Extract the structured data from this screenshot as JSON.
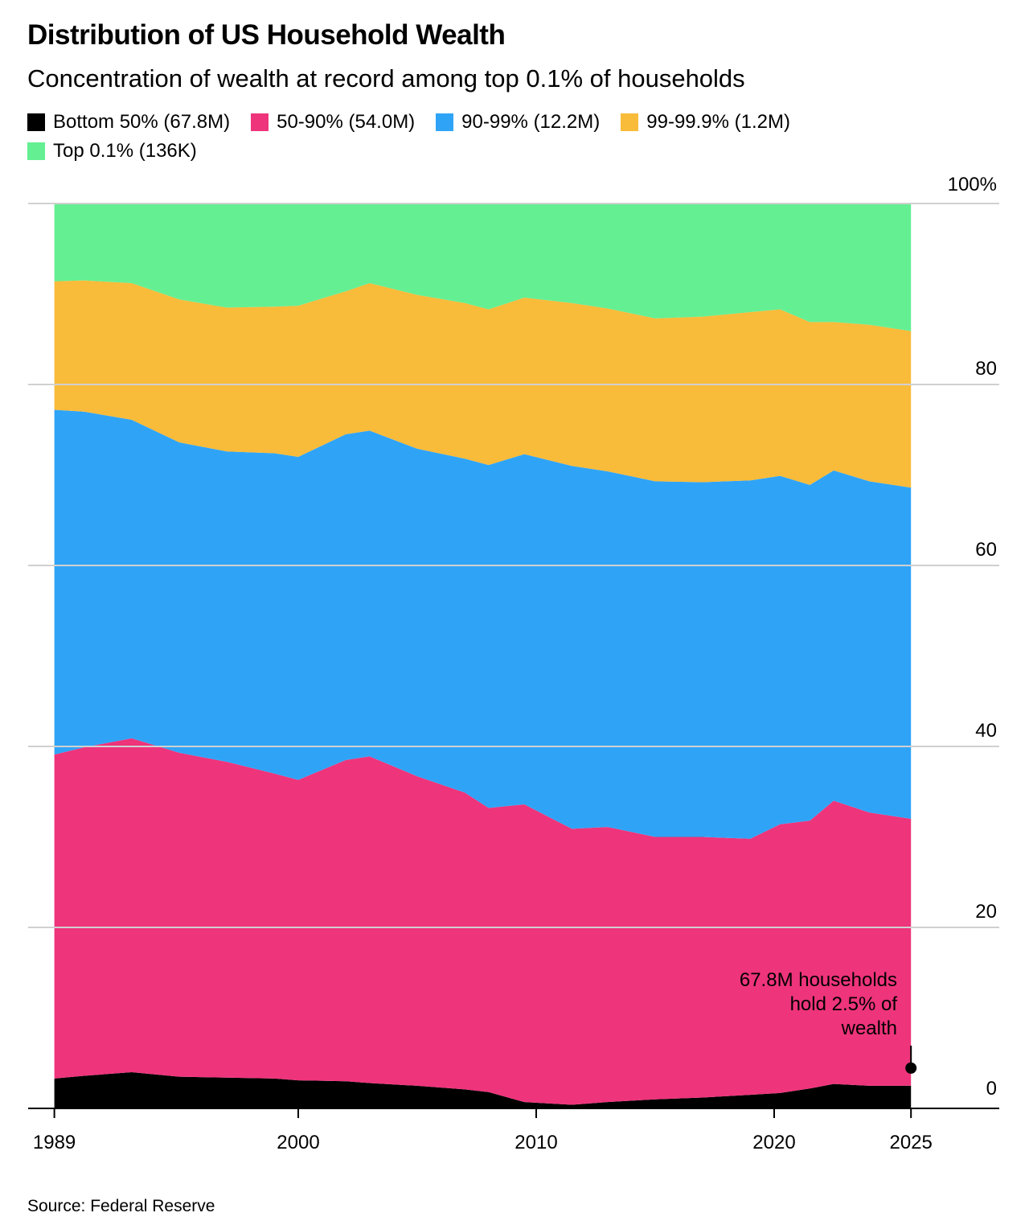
{
  "chart_data": {
    "type": "area",
    "stacked": true,
    "title": "Distribution of US Household Wealth",
    "subtitle": "Concentration of wealth at record among top 0.1% of households",
    "source": "Source: Federal Reserve",
    "xlabel": "",
    "ylabel": "",
    "ylim": [
      0,
      100
    ],
    "y_ticks": [
      {
        "value": 100,
        "label": "100%"
      },
      {
        "value": 80,
        "label": "80"
      },
      {
        "value": 60,
        "label": "60"
      },
      {
        "value": 40,
        "label": "40"
      },
      {
        "value": 20,
        "label": "20"
      },
      {
        "value": 0,
        "label": "0"
      }
    ],
    "x_ticks": [
      {
        "value": 1989.75,
        "label": "1989"
      },
      {
        "value": 2000,
        "label": "2000"
      },
      {
        "value": 2010,
        "label": "2010"
      },
      {
        "value": 2020,
        "label": "2020"
      },
      {
        "value": 2025.75,
        "label": "2025"
      }
    ],
    "grid": true,
    "legend_placement": "top-left",
    "x": [
      1989.75,
      1991,
      1993,
      1995,
      1997,
      1999,
      2000,
      2002,
      2003,
      2005,
      2007,
      2008,
      2009.5,
      2011.5,
      2013,
      2015,
      2017,
      2019,
      2020.25,
      2021.5,
      2022.5,
      2024,
      2025.75
    ],
    "series": [
      {
        "name": "Bottom 50% (67.8M)",
        "color": "#000000",
        "values": [
          3.3,
          3.6,
          4.0,
          3.5,
          3.4,
          3.3,
          3.1,
          3.0,
          2.8,
          2.5,
          2.1,
          1.8,
          0.7,
          0.4,
          0.7,
          1.0,
          1.2,
          1.5,
          1.7,
          2.2,
          2.7,
          2.5,
          2.5
        ]
      },
      {
        "name": "50-90% (54.0M)",
        "color": "#EE347B",
        "values": [
          35.8,
          36.3,
          36.9,
          35.8,
          34.9,
          33.7,
          33.2,
          35.5,
          36.1,
          34.2,
          32.8,
          31.4,
          32.9,
          30.5,
          30.4,
          29.0,
          28.8,
          28.3,
          29.7,
          29.6,
          31.3,
          30.2,
          29.5
        ]
      },
      {
        "name": "90-99% (12.2M)",
        "color": "#2FA4F7",
        "values": [
          38.1,
          37.1,
          35.2,
          34.3,
          34.3,
          35.4,
          35.7,
          36.0,
          36.0,
          36.2,
          36.9,
          37.9,
          38.7,
          40.1,
          39.3,
          39.3,
          39.2,
          39.6,
          38.5,
          37.1,
          36.5,
          36.6,
          36.6
        ]
      },
      {
        "name": "99-99.9% (1.2M)",
        "color": "#F8BB3A",
        "values": [
          14.2,
          14.5,
          15.1,
          15.8,
          15.9,
          16.2,
          16.7,
          15.8,
          16.3,
          17.0,
          17.2,
          17.2,
          17.3,
          18.0,
          18.0,
          18.0,
          18.3,
          18.6,
          18.4,
          18.0,
          16.4,
          17.3,
          17.3
        ]
      },
      {
        "name": "Top 0.1% (136K)",
        "color": "#64EF93",
        "values": [
          8.6,
          8.5,
          8.8,
          10.6,
          11.5,
          11.4,
          11.3,
          9.7,
          8.8,
          10.1,
          11.0,
          11.7,
          10.4,
          11.0,
          11.6,
          12.7,
          12.5,
          12.0,
          11.7,
          13.1,
          13.1,
          13.4,
          14.1
        ]
      }
    ],
    "annotation": {
      "text_lines": [
        "67.8M households",
        "hold 2.5% of",
        "wealth"
      ],
      "x": 2025.75,
      "y": 2.5
    }
  }
}
